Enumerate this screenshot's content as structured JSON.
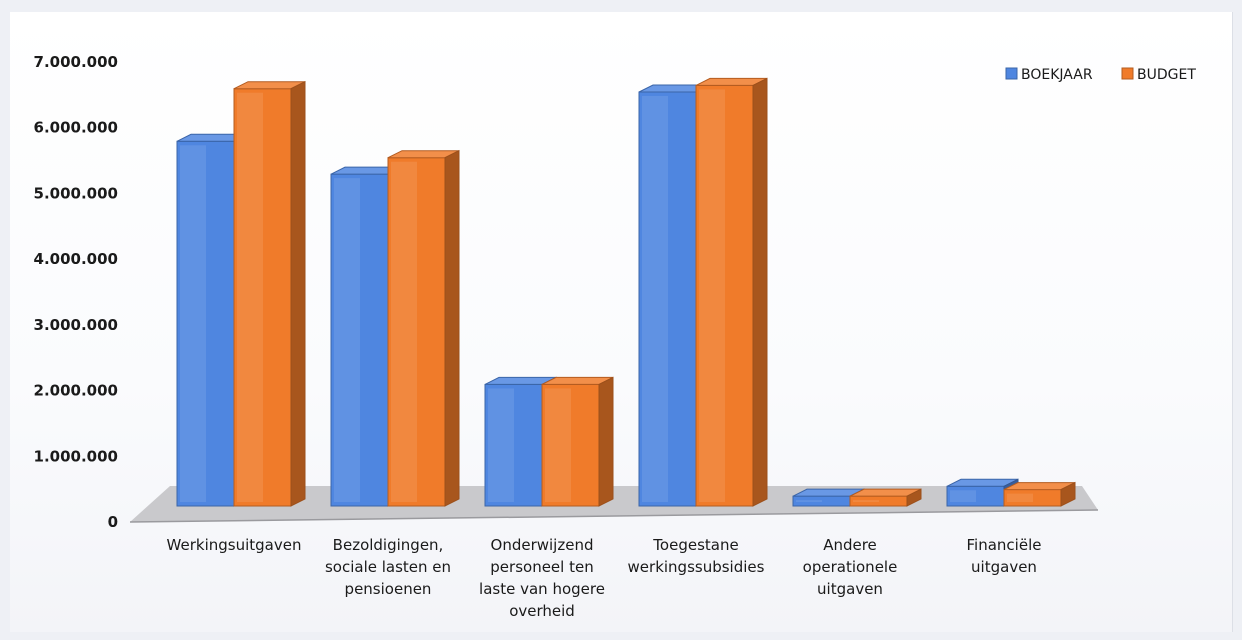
{
  "chart_data": {
    "type": "bar",
    "title": "",
    "xlabel": "",
    "ylabel": "",
    "ylim": [
      0,
      7000000
    ],
    "yticks": [
      {
        "value": 0,
        "label": "0"
      },
      {
        "value": 1000000,
        "label": "1.000.000"
      },
      {
        "value": 2000000,
        "label": "2.000.000"
      },
      {
        "value": 3000000,
        "label": "3.000.000"
      },
      {
        "value": 4000000,
        "label": "4.000.000"
      },
      {
        "value": 5000000,
        "label": "5.000.000"
      },
      {
        "value": 6000000,
        "label": "6.000.000"
      },
      {
        "value": 7000000,
        "label": "7.000.000"
      }
    ],
    "categories": [
      [
        "Werkingsuitgaven"
      ],
      [
        "Bezoldigingen,",
        "sociale lasten en",
        "pensioenen"
      ],
      [
        "Onderwijzend",
        "personeel ten",
        "laste van hogere",
        "overheid"
      ],
      [
        "Toegestane",
        "werkingssubsidies"
      ],
      [
        "Andere",
        "operationele",
        "uitgaven"
      ],
      [
        "Financiële",
        "uitgaven"
      ]
    ],
    "series": [
      {
        "name": "BOEKJAAR",
        "color": "#4f86e0",
        "values": [
          5550000,
          5050000,
          1850000,
          6300000,
          150000,
          300000
        ]
      },
      {
        "name": "BUDGET",
        "color": "#f07b2a",
        "values": [
          6350000,
          5300000,
          1850000,
          6400000,
          150000,
          250000
        ]
      }
    ],
    "legend_position": "top-right",
    "grid": false,
    "style": "3d-clustered"
  }
}
